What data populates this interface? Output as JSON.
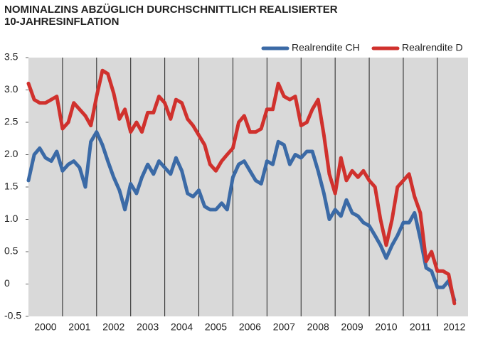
{
  "chart_data": {
    "type": "line",
    "title": "NOMINALZINS ABZÜGLICH DURCHSCHNITTLICH REALISIERTER",
    "subtitle": "10-JAHRESINFLATION",
    "x": [
      2000,
      2000.17,
      2000.33,
      2000.5,
      2000.67,
      2000.83,
      2001,
      2001.17,
      2001.33,
      2001.5,
      2001.67,
      2001.83,
      2002,
      2002.17,
      2002.33,
      2002.5,
      2002.67,
      2002.83,
      2003,
      2003.17,
      2003.33,
      2003.5,
      2003.67,
      2003.83,
      2004,
      2004.17,
      2004.33,
      2004.5,
      2004.67,
      2004.83,
      2005,
      2005.17,
      2005.33,
      2005.5,
      2005.67,
      2005.83,
      2006,
      2006.17,
      2006.33,
      2006.5,
      2006.67,
      2006.83,
      2007,
      2007.17,
      2007.33,
      2007.5,
      2007.67,
      2007.83,
      2008,
      2008.17,
      2008.33,
      2008.5,
      2008.67,
      2008.83,
      2009,
      2009.17,
      2009.33,
      2009.5,
      2009.67,
      2009.83,
      2010,
      2010.17,
      2010.33,
      2010.5,
      2010.67,
      2010.83,
      2011,
      2011.17,
      2011.33,
      2011.5,
      2011.67,
      2011.83,
      2012,
      2012.17,
      2012.33,
      2012.5
    ],
    "series": [
      {
        "name": "Realrendite CH",
        "color": "#3b6aa6",
        "values": [
          1.6,
          2.0,
          2.1,
          1.95,
          1.9,
          2.05,
          1.75,
          1.85,
          1.9,
          1.8,
          1.5,
          2.2,
          2.35,
          2.15,
          1.9,
          1.65,
          1.45,
          1.15,
          1.55,
          1.4,
          1.65,
          1.85,
          1.7,
          1.9,
          1.8,
          1.7,
          1.95,
          1.75,
          1.4,
          1.35,
          1.45,
          1.2,
          1.15,
          1.15,
          1.25,
          1.15,
          1.65,
          1.85,
          1.9,
          1.75,
          1.6,
          1.55,
          1.9,
          1.85,
          2.2,
          2.15,
          1.85,
          2.0,
          1.95,
          2.05,
          2.05,
          1.75,
          1.4,
          1.0,
          1.15,
          1.05,
          1.3,
          1.1,
          1.05,
          0.95,
          0.9,
          0.75,
          0.6,
          0.4,
          0.6,
          0.75,
          0.95,
          0.95,
          1.1,
          0.7,
          0.25,
          0.2,
          -0.05,
          -0.05,
          0.05,
          -0.25
        ]
      },
      {
        "name": "Realrendite D",
        "color": "#d0312d",
        "values": [
          3.1,
          2.85,
          2.8,
          2.8,
          2.85,
          2.9,
          2.4,
          2.5,
          2.8,
          2.7,
          2.6,
          2.45,
          2.9,
          3.3,
          3.25,
          2.95,
          2.55,
          2.7,
          2.35,
          2.5,
          2.35,
          2.65,
          2.65,
          2.9,
          2.8,
          2.55,
          2.85,
          2.8,
          2.55,
          2.45,
          2.3,
          2.15,
          1.85,
          1.75,
          1.9,
          2.0,
          2.1,
          2.5,
          2.6,
          2.35,
          2.35,
          2.4,
          2.7,
          2.7,
          3.1,
          2.9,
          2.85,
          2.9,
          2.45,
          2.5,
          2.7,
          2.85,
          2.3,
          1.7,
          1.4,
          1.95,
          1.6,
          1.75,
          1.65,
          1.75,
          1.6,
          1.5,
          1.0,
          0.6,
          1.0,
          1.5,
          1.6,
          1.7,
          1.35,
          1.1,
          0.35,
          0.5,
          0.2,
          0.2,
          0.15,
          -0.3
        ]
      }
    ],
    "xlim": [
      2000,
      2012.9
    ],
    "ylim": [
      -0.5,
      3.5
    ],
    "yticks": [
      -0.5,
      {
        "value": 0,
        "label": "0"
      },
      0.5,
      {
        "value": 1,
        "label": "1.0"
      },
      1.5,
      {
        "value": 2,
        "label": "2.0"
      },
      2.5,
      {
        "value": 3,
        "label": "3.0"
      },
      3.5
    ],
    "xgrid": [
      2001,
      2002,
      2003,
      2004,
      2005,
      2006,
      2007,
      2008,
      2009,
      2010,
      2011,
      2012
    ],
    "xtick_labels": [
      {
        "value": 2000.5,
        "label": "2000"
      },
      {
        "value": 2001.5,
        "label": "2001"
      },
      {
        "value": 2002.5,
        "label": "2002"
      },
      {
        "value": 2003.5,
        "label": "2003"
      },
      {
        "value": 2004.5,
        "label": "2004"
      },
      {
        "value": 2005.5,
        "label": "2005"
      },
      {
        "value": 2006.5,
        "label": "2006"
      },
      {
        "value": 2007.5,
        "label": "2007"
      },
      {
        "value": 2008.5,
        "label": "2008"
      },
      {
        "value": 2009.5,
        "label": "2009"
      },
      {
        "value": 2010.5,
        "label": "2010"
      },
      {
        "value": 2011.5,
        "label": "2011"
      },
      {
        "value": 2012.5,
        "label": "2012"
      }
    ],
    "legend": "top-right"
  }
}
